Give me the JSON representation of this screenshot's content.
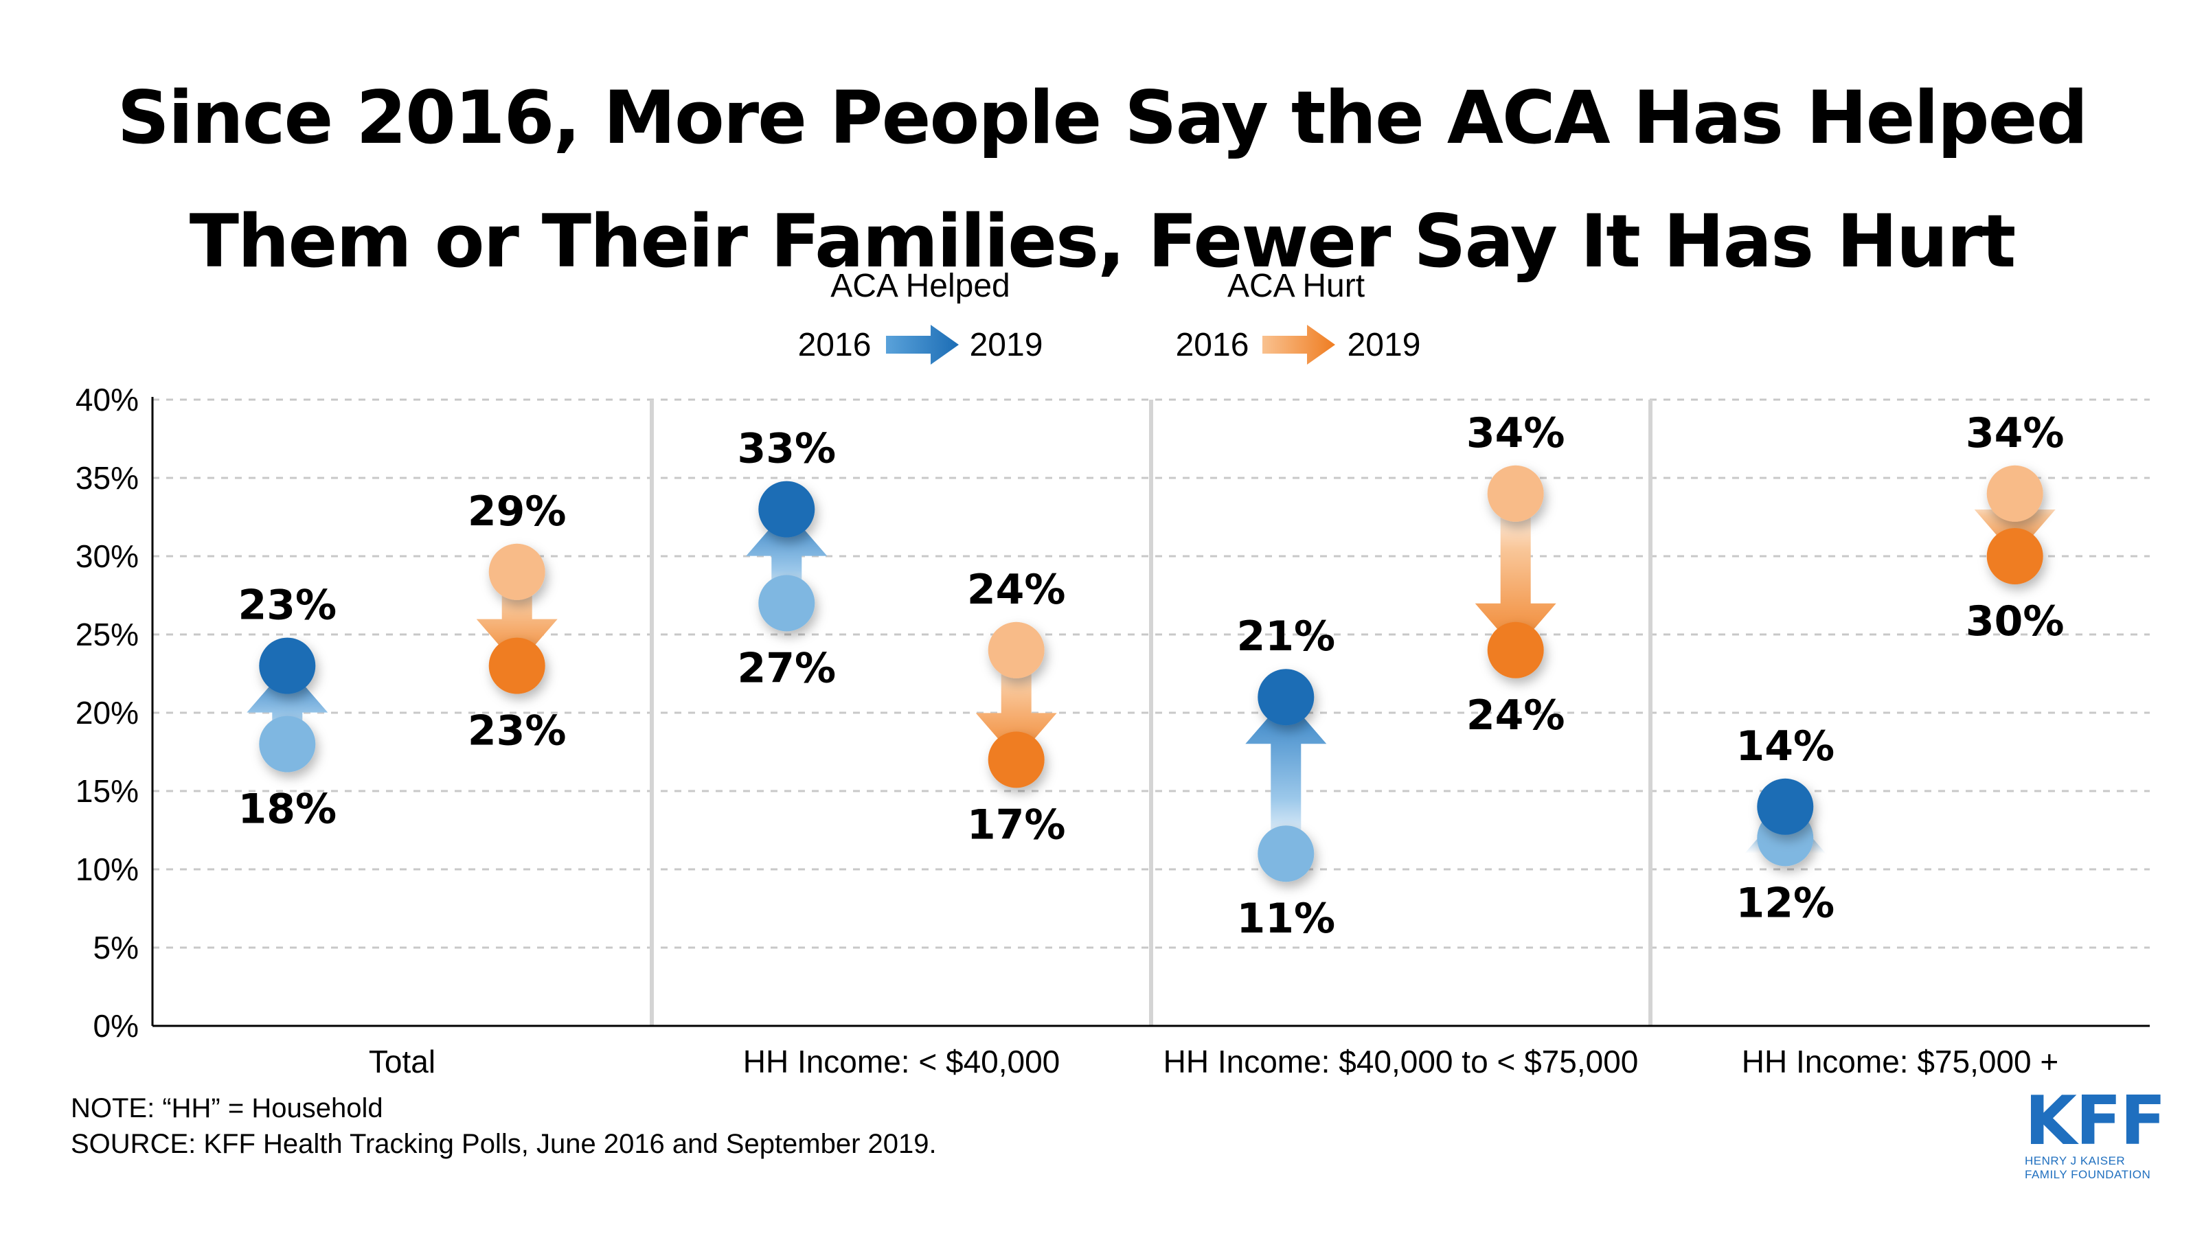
{
  "title_line1": "Since 2016, More People Say the ACA Has Helped",
  "title_line2": "Them or Their Families, Fewer Say It Has Hurt",
  "legend": {
    "helped_label": "ACA Helped",
    "hurt_label": "ACA Hurt",
    "from_year": "2016",
    "to_year": "2019"
  },
  "note": "NOTE: “HH” = Household",
  "source": "SOURCE: KFF Health Tracking Polls, June 2016 and September 2019.",
  "logo": {
    "name": "KFF",
    "line1": "HENRY J KAISER",
    "line2": "FAMILY FOUNDATION"
  },
  "colors": {
    "helped_2016": "#7fb7e1",
    "helped_2019": "#1c6db5",
    "hurt_2016": "#f8bb88",
    "hurt_2019": "#ef7d22"
  },
  "chart_data": {
    "type": "scatter",
    "title": "Since 2016, More People Say the ACA Has Helped Them or Their Families, Fewer Say It Has Hurt",
    "ylim": [
      0,
      40
    ],
    "yticks": [
      0,
      5,
      10,
      15,
      20,
      25,
      30,
      35,
      40
    ],
    "ytick_labels": [
      "0%",
      "5%",
      "10%",
      "15%",
      "20%",
      "25%",
      "30%",
      "35%",
      "40%"
    ],
    "grid": true,
    "legend_position": "top-center",
    "categories": [
      "Total",
      "HH Income: < $40,000",
      "HH Income: $40,000 to < $75,000",
      "HH Income: $75,000 +"
    ],
    "series": [
      {
        "name": "ACA Helped",
        "from_year": "2016",
        "to_year": "2019",
        "values_2016": [
          18,
          27,
          11,
          12
        ],
        "values_2019": [
          23,
          33,
          21,
          14
        ],
        "labels_2016": [
          "18%",
          "27%",
          "11%",
          "12%"
        ],
        "labels_2019": [
          "23%",
          "33%",
          "21%",
          "14%"
        ]
      },
      {
        "name": "ACA Hurt",
        "from_year": "2016",
        "to_year": "2019",
        "values_2016": [
          29,
          24,
          34,
          34
        ],
        "values_2019": [
          23,
          17,
          24,
          30
        ],
        "labels_2016": [
          "29%",
          "24%",
          "34%",
          "34%"
        ],
        "labels_2019": [
          "23%",
          "17%",
          "24%",
          "30%"
        ]
      }
    ]
  }
}
